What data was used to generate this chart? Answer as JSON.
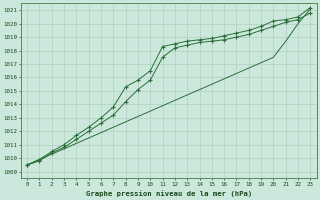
{
  "title": "Graphe pression niveau de la mer (hPa)",
  "bg_color": "#cce8dc",
  "grid_color": "#b0d0c0",
  "line_color": "#2a6e3a",
  "xlim": [
    -0.5,
    23.5
  ],
  "ylim": [
    1008.5,
    1021.5
  ],
  "xticks": [
    0,
    1,
    2,
    3,
    4,
    5,
    6,
    7,
    8,
    9,
    10,
    11,
    12,
    13,
    14,
    15,
    16,
    17,
    18,
    19,
    20,
    21,
    22,
    23
  ],
  "yticks": [
    1009,
    1010,
    1011,
    1012,
    1013,
    1014,
    1015,
    1016,
    1017,
    1018,
    1019,
    1020,
    1021
  ],
  "series1": [
    1009.5,
    1009.9,
    1010.5,
    1011.0,
    1011.7,
    1012.3,
    1013.0,
    1013.8,
    1015.3,
    1015.8,
    1016.5,
    1018.3,
    1018.5,
    1018.7,
    1018.8,
    1018.9,
    1019.1,
    1019.3,
    1019.5,
    1019.8,
    1020.2,
    1020.3,
    1020.5,
    1021.2
  ],
  "series2": [
    1009.5,
    1009.8,
    1010.4,
    1010.8,
    1011.4,
    1012.0,
    1012.6,
    1013.2,
    1014.2,
    1015.1,
    1015.8,
    1017.5,
    1018.2,
    1018.4,
    1018.6,
    1018.7,
    1018.8,
    1019.0,
    1019.2,
    1019.5,
    1019.8,
    1020.1,
    1020.3,
    1020.8
  ],
  "series3": [
    1009.5,
    1009.9,
    1010.3,
    1010.7,
    1011.1,
    1011.5,
    1011.9,
    1012.3,
    1012.7,
    1013.1,
    1013.5,
    1013.9,
    1014.3,
    1014.7,
    1015.1,
    1015.5,
    1015.9,
    1016.3,
    1016.7,
    1017.1,
    1017.5,
    1018.7,
    1020.0,
    1021.1
  ]
}
